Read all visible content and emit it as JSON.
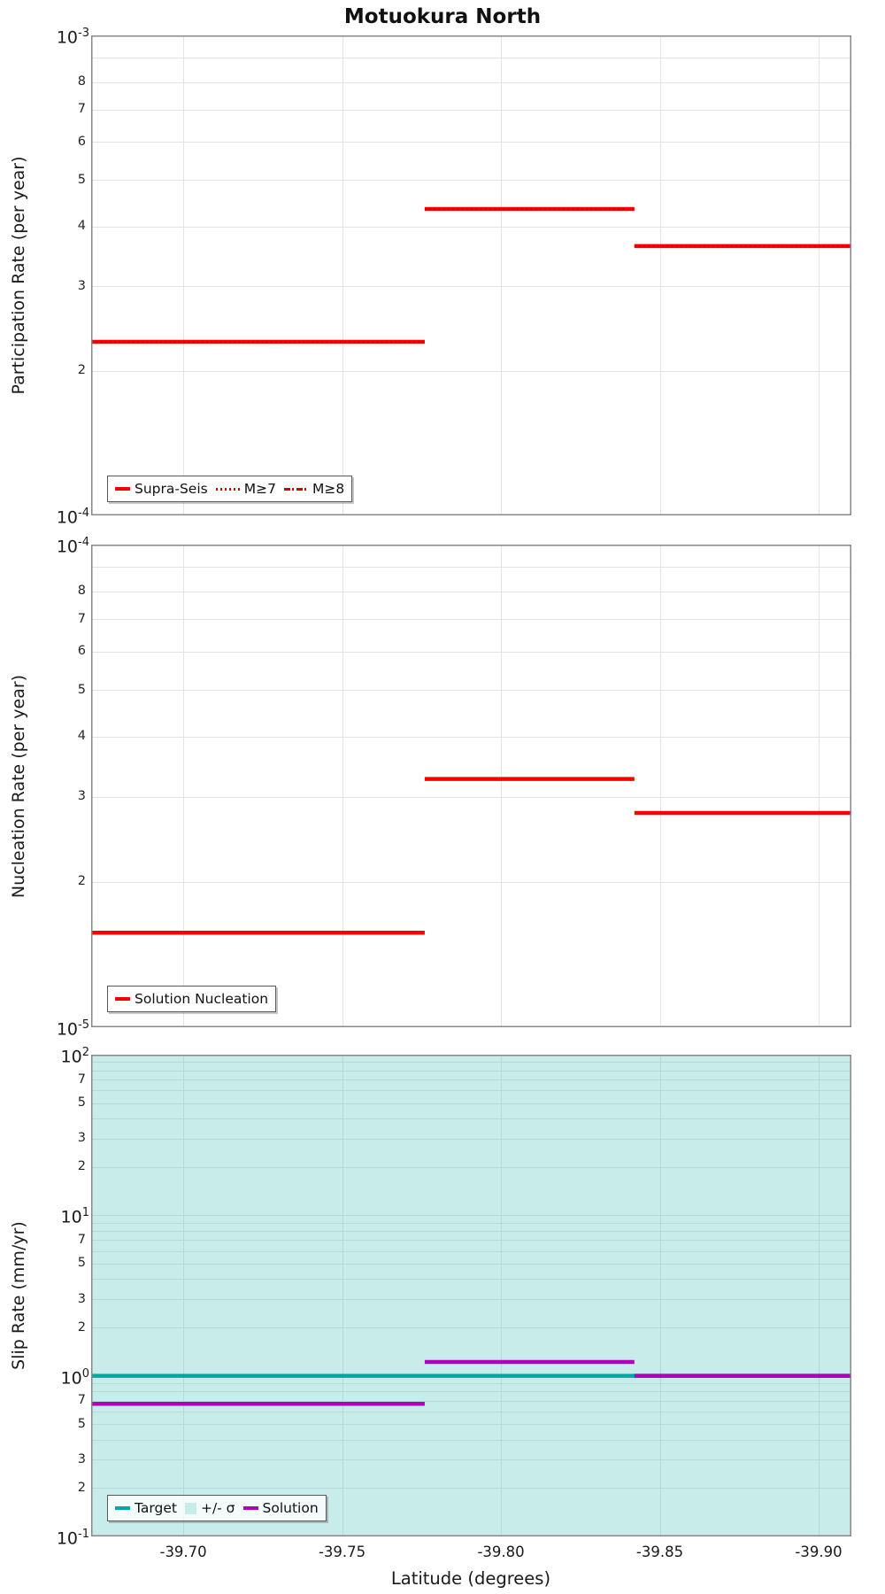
{
  "title": "Motuokura North",
  "xlabel": "Latitude (degrees)",
  "colors": {
    "red": "#fb0000",
    "red_dark": "#cf0000",
    "teal": "#00a8a4",
    "purple": "#b100b8",
    "sigma_band": "#c8ecea",
    "grid": "#e4e4e4",
    "grid_on_band": "#b2dbd8",
    "spine": "#888888"
  },
  "x_axis": {
    "ticks": [
      -39.7,
      -39.75,
      -39.8,
      -39.85,
      -39.9
    ],
    "tick_labels": [
      "-39.70",
      "-39.75",
      "-39.80",
      "-39.85",
      "-39.90"
    ],
    "range": [
      -39.671,
      -39.9103
    ],
    "inverted": true
  },
  "chart_data": [
    {
      "type": "line",
      "ylabel": "Participation Rate (per year)",
      "yscale": "log",
      "ylim": [
        0.0001,
        0.001
      ],
      "grid": true,
      "legend_position": "lower-left",
      "y_major_labels": [
        {
          "base": "10",
          "exp": "-3"
        },
        {
          "base": "10",
          "exp": "-4"
        }
      ],
      "minor_labels": [
        "8",
        "7",
        "6",
        "5",
        "4",
        "3",
        "2"
      ],
      "x_edges": [
        -39.671,
        -39.776,
        -39.842,
        -39.9103
      ],
      "series": [
        {
          "name": "Supra-Seis",
          "style": "solid",
          "color_key": "red",
          "values": [
            0.00023,
            0.000435,
            0.000364
          ]
        },
        {
          "name": "M≥7",
          "style": "dotted",
          "color_key": "red_dark",
          "values": [
            0.00023,
            0.000435,
            0.000364
          ]
        },
        {
          "name": "M≥8",
          "style": "dashdot",
          "color_key": "red_dark",
          "values": []
        }
      ]
    },
    {
      "type": "line",
      "ylabel": "Nucleation Rate (per year)",
      "yscale": "log",
      "ylim": [
        1e-05,
        0.0001
      ],
      "grid": true,
      "legend_position": "lower-left",
      "y_major_labels": [
        {
          "base": "10",
          "exp": "-4"
        },
        {
          "base": "10",
          "exp": "-5"
        }
      ],
      "minor_labels": [
        "8",
        "7",
        "6",
        "5",
        "4",
        "3",
        "2"
      ],
      "x_edges": [
        -39.671,
        -39.776,
        -39.842,
        -39.9103
      ],
      "series": [
        {
          "name": "Solution Nucleation",
          "style": "solid",
          "color_key": "red",
          "values": [
            1.57e-05,
            3.27e-05,
            2.78e-05
          ]
        }
      ]
    },
    {
      "type": "line",
      "ylabel": "Slip Rate (mm/yr)",
      "yscale": "log",
      "ylim": [
        0.1,
        100
      ],
      "grid": true,
      "legend_position": "lower-left",
      "y_major_labels": [
        {
          "base": "10",
          "exp": "2"
        },
        {
          "base": "10",
          "exp": "1"
        },
        {
          "base": "10",
          "exp": "0"
        },
        {
          "base": "10",
          "exp": "-1"
        }
      ],
      "minor_labels": [
        "7",
        "5",
        "3",
        "2"
      ],
      "x_edges": [
        -39.671,
        -39.776,
        -39.842,
        -39.9103
      ],
      "band": {
        "label": "+/- σ",
        "fills_plot_area": true,
        "color_key": "sigma_band"
      },
      "series": [
        {
          "name": "Target",
          "style": "solid",
          "color_key": "teal",
          "values": [
            1.0
          ],
          "x_edges": [
            -39.671,
            -39.9103
          ]
        },
        {
          "name": "Solution",
          "style": "solid",
          "color_key": "purple",
          "values": [
            0.67,
            1.22,
            1.0
          ]
        }
      ]
    }
  ]
}
